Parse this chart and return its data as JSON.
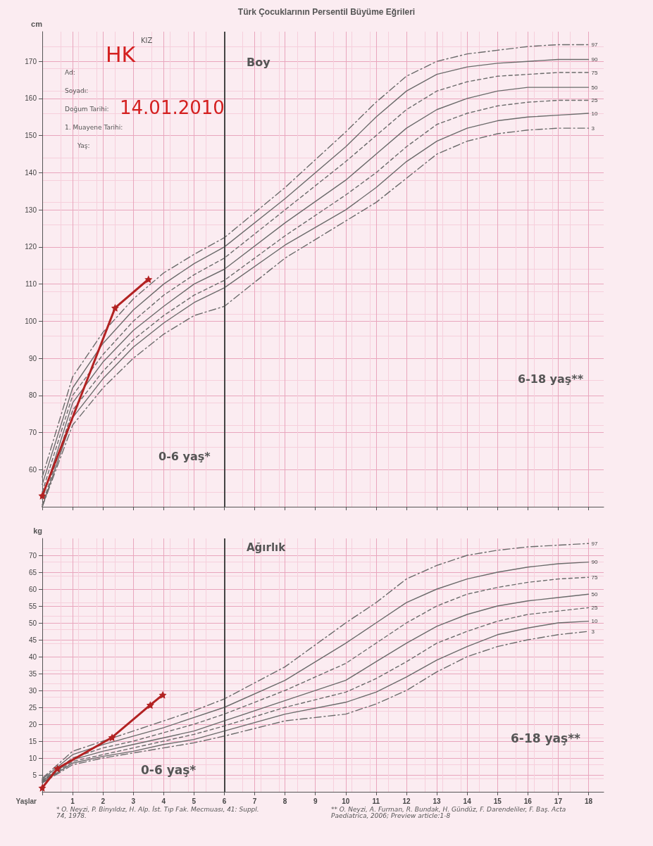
{
  "chart_data": [
    {
      "type": "line",
      "title": "Türk Çocuklarının Persentil Büyüme Eğrileri",
      "ylabel": "cm",
      "x": [
        0,
        1,
        2,
        3,
        4,
        5,
        6,
        8,
        10,
        11,
        12,
        13,
        14,
        15,
        16,
        17,
        18
      ],
      "xlim": [
        0,
        18.5
      ],
      "xticks": [
        {
          "value": 0,
          "label": null
        },
        1,
        2,
        3,
        4,
        5,
        6,
        7,
        8,
        9,
        10,
        11,
        12,
        13,
        14,
        15,
        16,
        17,
        18
      ],
      "ylim": [
        50,
        178
      ],
      "yticks": [
        60,
        70,
        80,
        90,
        100,
        110,
        120,
        130,
        140,
        150,
        160,
        170
      ],
      "tick_labels": "y",
      "grid": true,
      "marker": "none",
      "line_style": "solid",
      "series": [
        {
          "name": "97",
          "color": "#6b6b6b",
          "line_style": "dashed",
          "values": [
            58,
            85,
            97,
            106,
            113,
            118,
            122.5,
            136,
            151,
            159,
            166,
            170,
            172,
            173,
            174,
            174.5,
            174.5
          ]
        },
        {
          "name": "90",
          "color": "#6b6b6b",
          "values": [
            56,
            82,
            94,
            103,
            110,
            115.5,
            120,
            133,
            147,
            155,
            162,
            166.5,
            168.5,
            169.5,
            170,
            170.5,
            170.5
          ]
        },
        {
          "name": "75",
          "color": "#6b6b6b",
          "line_style": "dotted",
          "values": [
            54,
            80,
            91,
            100,
            107,
            112.5,
            117,
            130,
            143,
            150,
            157,
            162,
            164.5,
            166,
            166.5,
            167,
            167
          ]
        },
        {
          "name": "50",
          "color": "#6b6b6b",
          "values": [
            52,
            78,
            89,
            97.5,
            104,
            110,
            114,
            126.5,
            138,
            145,
            152,
            157,
            160,
            162,
            163,
            163,
            163
          ]
        },
        {
          "name": "25",
          "color": "#6b6b6b",
          "line_style": "dotted",
          "values": [
            50.5,
            76,
            86.5,
            95,
            101.5,
            107,
            111,
            123,
            134,
            140,
            147,
            153,
            156,
            158,
            159,
            159.5,
            159.5
          ]
        },
        {
          "name": "10",
          "color": "#6b6b6b",
          "values": [
            50,
            74,
            84.5,
            93,
            99.5,
            105,
            109,
            120.5,
            130,
            136,
            143,
            148.5,
            152,
            154,
            155,
            155.5,
            156
          ]
        },
        {
          "name": "3",
          "color": "#6b6b6b",
          "line_style": "dashed",
          "values": [
            50,
            72,
            82,
            90,
            96.5,
            101.5,
            104,
            117,
            127,
            132,
            138.5,
            145,
            148.5,
            150.5,
            151.5,
            152,
            152
          ]
        },
        {
          "color": "#b22222",
          "marker": "star",
          "x": [
            0,
            2.4,
            3.5
          ],
          "values": [
            53,
            103.6,
            111.3
          ]
        }
      ],
      "ref_lines": [
        {
          "axis": "x",
          "value": 6,
          "color": "#444444"
        }
      ],
      "annotations": [
        "Boy",
        "0-6 yaş*",
        "6-18 yaş**",
        "KIZ",
        "HK",
        "Ad:",
        "Soyadı:",
        "Doğum Tarihi:",
        "14.01.2010",
        "1. Muayene Tarihi:",
        "Yaş:"
      ]
    },
    {
      "type": "line",
      "ylabel": "kg",
      "xlabel": "Yaşlar",
      "x": [
        0,
        1,
        2,
        3,
        4,
        5,
        6,
        8,
        10,
        11,
        12,
        13,
        14,
        15,
        16,
        17,
        18
      ],
      "xlim": [
        0,
        18.5
      ],
      "xticks": [
        {
          "value": 0,
          "label": null
        },
        1,
        2,
        3,
        4,
        5,
        6,
        7,
        8,
        9,
        10,
        11,
        12,
        13,
        14,
        15,
        16,
        17,
        18
      ],
      "ylim": [
        0,
        75
      ],
      "yticks": [
        5,
        10,
        15,
        20,
        25,
        30,
        35,
        40,
        45,
        50,
        55,
        60,
        65,
        70
      ],
      "grid": true,
      "marker": "none",
      "line_style": "solid",
      "series": [
        {
          "name": "97",
          "color": "#6b6b6b",
          "line_style": "dashed",
          "values": [
            4,
            12,
            15,
            18,
            21,
            24,
            27.5,
            37,
            50,
            56,
            63,
            67,
            70,
            71.5,
            72.5,
            73,
            73.5
          ]
        },
        {
          "name": "90",
          "color": "#6b6b6b",
          "values": [
            3.7,
            11,
            14,
            16.5,
            19,
            22,
            25,
            33,
            44,
            50,
            56,
            60,
            63,
            65,
            66.5,
            67.5,
            68
          ]
        },
        {
          "name": "75",
          "color": "#6b6b6b",
          "line_style": "dotted",
          "values": [
            3.4,
            10,
            13,
            15,
            17.5,
            20,
            23,
            30,
            38,
            44,
            50,
            55,
            58.5,
            60.5,
            62,
            63,
            63.5
          ]
        },
        {
          "name": "50",
          "color": "#6b6b6b",
          "values": [
            3.2,
            9.5,
            12,
            14,
            16,
            18,
            21,
            27,
            33,
            38.5,
            44,
            49,
            52.5,
            55,
            56.5,
            57.5,
            58.5
          ]
        },
        {
          "name": "25",
          "color": "#6b6b6b",
          "line_style": "dotted",
          "values": [
            3,
            9,
            11,
            13,
            15,
            17,
            19.5,
            25,
            29.5,
            33.5,
            38.5,
            44,
            47.5,
            50.5,
            52.5,
            53.5,
            54.5
          ]
        },
        {
          "name": "10",
          "color": "#6b6b6b",
          "values": [
            2.8,
            8.5,
            10.5,
            12,
            14,
            15.5,
            18,
            23,
            26.5,
            29.5,
            34,
            39,
            43,
            46.5,
            48.5,
            50,
            50.5
          ]
        },
        {
          "name": "3",
          "color": "#6b6b6b",
          "line_style": "dashed",
          "values": [
            2.6,
            8,
            10,
            11.5,
            13,
            14.5,
            16.5,
            21,
            23,
            26,
            30,
            35.5,
            40,
            43,
            45,
            46.5,
            47.5
          ]
        },
        {
          "color": "#b22222",
          "marker": "star",
          "x": [
            0,
            0.5,
            2.3,
            3.56,
            3.97
          ],
          "values": [
            1.2,
            6.9,
            16.1,
            25.7,
            28.7
          ]
        }
      ],
      "ref_lines": [
        {
          "axis": "x",
          "value": 6,
          "color": "#444444"
        }
      ],
      "annotations": [
        "Ağırlık",
        "0-6 yaş*",
        "6-18 yaş**",
        "* O. Neyzi, P. Binyıldız, H. Alp. İst. Tıp Fak. Mecmuası, 41: Suppl. 74, 1978.",
        "** O. Neyzi, A. Furman, R. Bundak, H. Gündüz, F. Darendeliler, F. Baş. Acta Paediatrica, 2006; Preview article:1-8"
      ]
    }
  ]
}
